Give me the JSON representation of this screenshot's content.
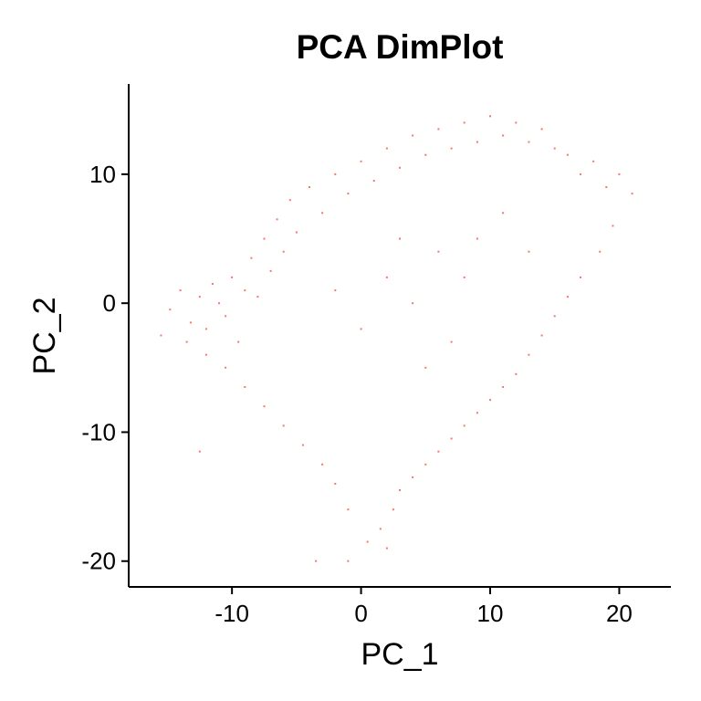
{
  "chart_data": {
    "type": "scatter",
    "title": "PCA DimPlot",
    "xlabel": "PC_1",
    "ylabel": "PC_2",
    "xlim": [
      -18,
      24
    ],
    "ylim": [
      -22,
      17
    ],
    "x_ticks": [
      -10,
      0,
      10,
      20
    ],
    "x_tick_labels": [
      "-10",
      "0",
      "10",
      "20"
    ],
    "y_ticks": [
      10,
      0,
      -10,
      -20
    ],
    "y_tick_labels": [
      "10",
      "0",
      "-10",
      "-20"
    ],
    "grid": false,
    "legend": "none",
    "point_color": "#F8766D",
    "series": [
      {
        "points": [
          [
            -15.5,
            -2.5
          ],
          [
            -14.8,
            -0.5
          ],
          [
            -14.0,
            1.0
          ],
          [
            -13.2,
            -1.5
          ],
          [
            -12.5,
            0.5
          ],
          [
            -12.0,
            -2.0
          ],
          [
            -11.5,
            1.5
          ],
          [
            -11.0,
            0.0
          ],
          [
            -10.5,
            -1.0
          ],
          [
            -10.0,
            2.0
          ],
          [
            -9.5,
            -3.0
          ],
          [
            -9.0,
            1.0
          ],
          [
            -8.5,
            3.5
          ],
          [
            -8.0,
            0.5
          ],
          [
            -7.5,
            5.0
          ],
          [
            -7.0,
            2.5
          ],
          [
            -6.5,
            6.5
          ],
          [
            -6.0,
            4.0
          ],
          [
            -5.5,
            8.0
          ],
          [
            -5.0,
            5.5
          ],
          [
            -4.0,
            9.0
          ],
          [
            -3.0,
            7.0
          ],
          [
            -2.0,
            10.0
          ],
          [
            -1.0,
            8.5
          ],
          [
            0.0,
            11.0
          ],
          [
            1.0,
            9.5
          ],
          [
            2.0,
            12.0
          ],
          [
            3.0,
            10.5
          ],
          [
            4.0,
            13.0
          ],
          [
            5.0,
            11.5
          ],
          [
            6.0,
            13.5
          ],
          [
            7.0,
            12.0
          ],
          [
            8.0,
            14.0
          ],
          [
            9.0,
            12.5
          ],
          [
            10.0,
            14.5
          ],
          [
            11.0,
            13.0
          ],
          [
            12.0,
            14.0
          ],
          [
            13.0,
            12.5
          ],
          [
            14.0,
            13.5
          ],
          [
            15.0,
            12.0
          ],
          [
            16.0,
            11.5
          ],
          [
            17.0,
            10.0
          ],
          [
            18.0,
            11.0
          ],
          [
            19.0,
            9.0
          ],
          [
            20.0,
            10.0
          ],
          [
            21.0,
            8.5
          ],
          [
            19.5,
            6.0
          ],
          [
            18.5,
            4.0
          ],
          [
            17.0,
            2.0
          ],
          [
            16.0,
            0.5
          ],
          [
            15.0,
            -1.0
          ],
          [
            14.0,
            -2.5
          ],
          [
            13.0,
            -4.0
          ],
          [
            12.0,
            -5.5
          ],
          [
            11.0,
            -6.5
          ],
          [
            10.0,
            -7.5
          ],
          [
            9.0,
            -8.5
          ],
          [
            8.0,
            -9.5
          ],
          [
            7.0,
            -10.5
          ],
          [
            6.0,
            -11.5
          ],
          [
            5.0,
            -12.5
          ],
          [
            4.0,
            -13.5
          ],
          [
            3.0,
            -14.5
          ],
          [
            2.5,
            -16.0
          ],
          [
            1.5,
            -17.5
          ],
          [
            0.5,
            -18.5
          ],
          [
            -1.0,
            -16.0
          ],
          [
            -2.0,
            -14.0
          ],
          [
            -3.0,
            -12.5
          ],
          [
            -4.5,
            -11.0
          ],
          [
            -6.0,
            -9.5
          ],
          [
            -7.5,
            -8.0
          ],
          [
            -9.0,
            -6.5
          ],
          [
            -10.5,
            -5.0
          ],
          [
            -12.0,
            -4.0
          ],
          [
            -13.5,
            -3.0
          ],
          [
            -12.5,
            -11.5
          ],
          [
            -3.5,
            -20.0
          ],
          [
            -1.0,
            -20.0
          ],
          [
            2.0,
            -19.0
          ],
          [
            0.0,
            -2.0
          ],
          [
            2.0,
            2.0
          ],
          [
            4.0,
            0.0
          ],
          [
            -2.0,
            1.0
          ],
          [
            6.0,
            4.0
          ],
          [
            8.0,
            2.0
          ],
          [
            5.0,
            -5.0
          ],
          [
            7.0,
            -3.0
          ],
          [
            9.0,
            5.0
          ],
          [
            11.0,
            7.0
          ],
          [
            13.0,
            4.0
          ],
          [
            3.0,
            5.0
          ]
        ]
      }
    ]
  }
}
